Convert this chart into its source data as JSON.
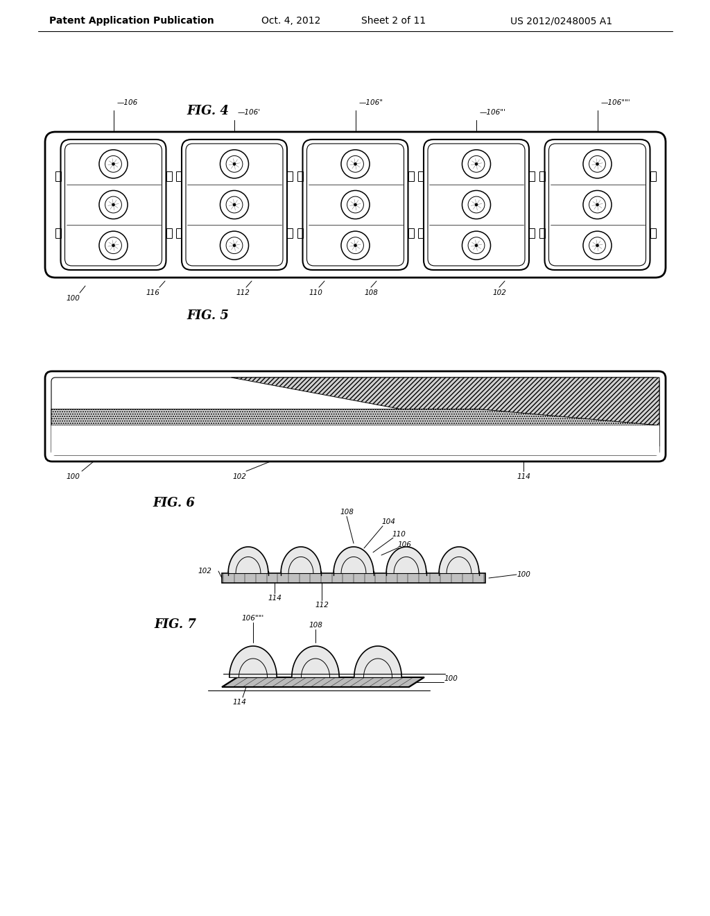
{
  "bg_color": "#ffffff",
  "line_color": "#000000",
  "header_text": "Patent Application Publication",
  "header_date": "Oct. 4, 2012",
  "header_sheet": "Sheet 2 of 11",
  "header_patent": "US 2012/0248005 A1",
  "fig4_label": "FIG. 4",
  "fig5_label": "FIG. 5",
  "fig6_label": "FIG. 6",
  "fig7_label": "FIG. 7",
  "fig4_ref_top": [
    "106",
    "106'",
    "106\"",
    "106\"'",
    "106\"\"'"
  ],
  "fig4_ref_bottom": [
    "100",
    "116",
    "112",
    "110",
    "108",
    "102"
  ],
  "fig5_ref": [
    "100",
    "102",
    "114"
  ],
  "fig6_ref": [
    "108",
    "104",
    "110",
    "106",
    "102",
    "114",
    "112",
    "100"
  ],
  "fig7_ref": [
    "106\"\"'",
    "108",
    "100",
    "114"
  ]
}
